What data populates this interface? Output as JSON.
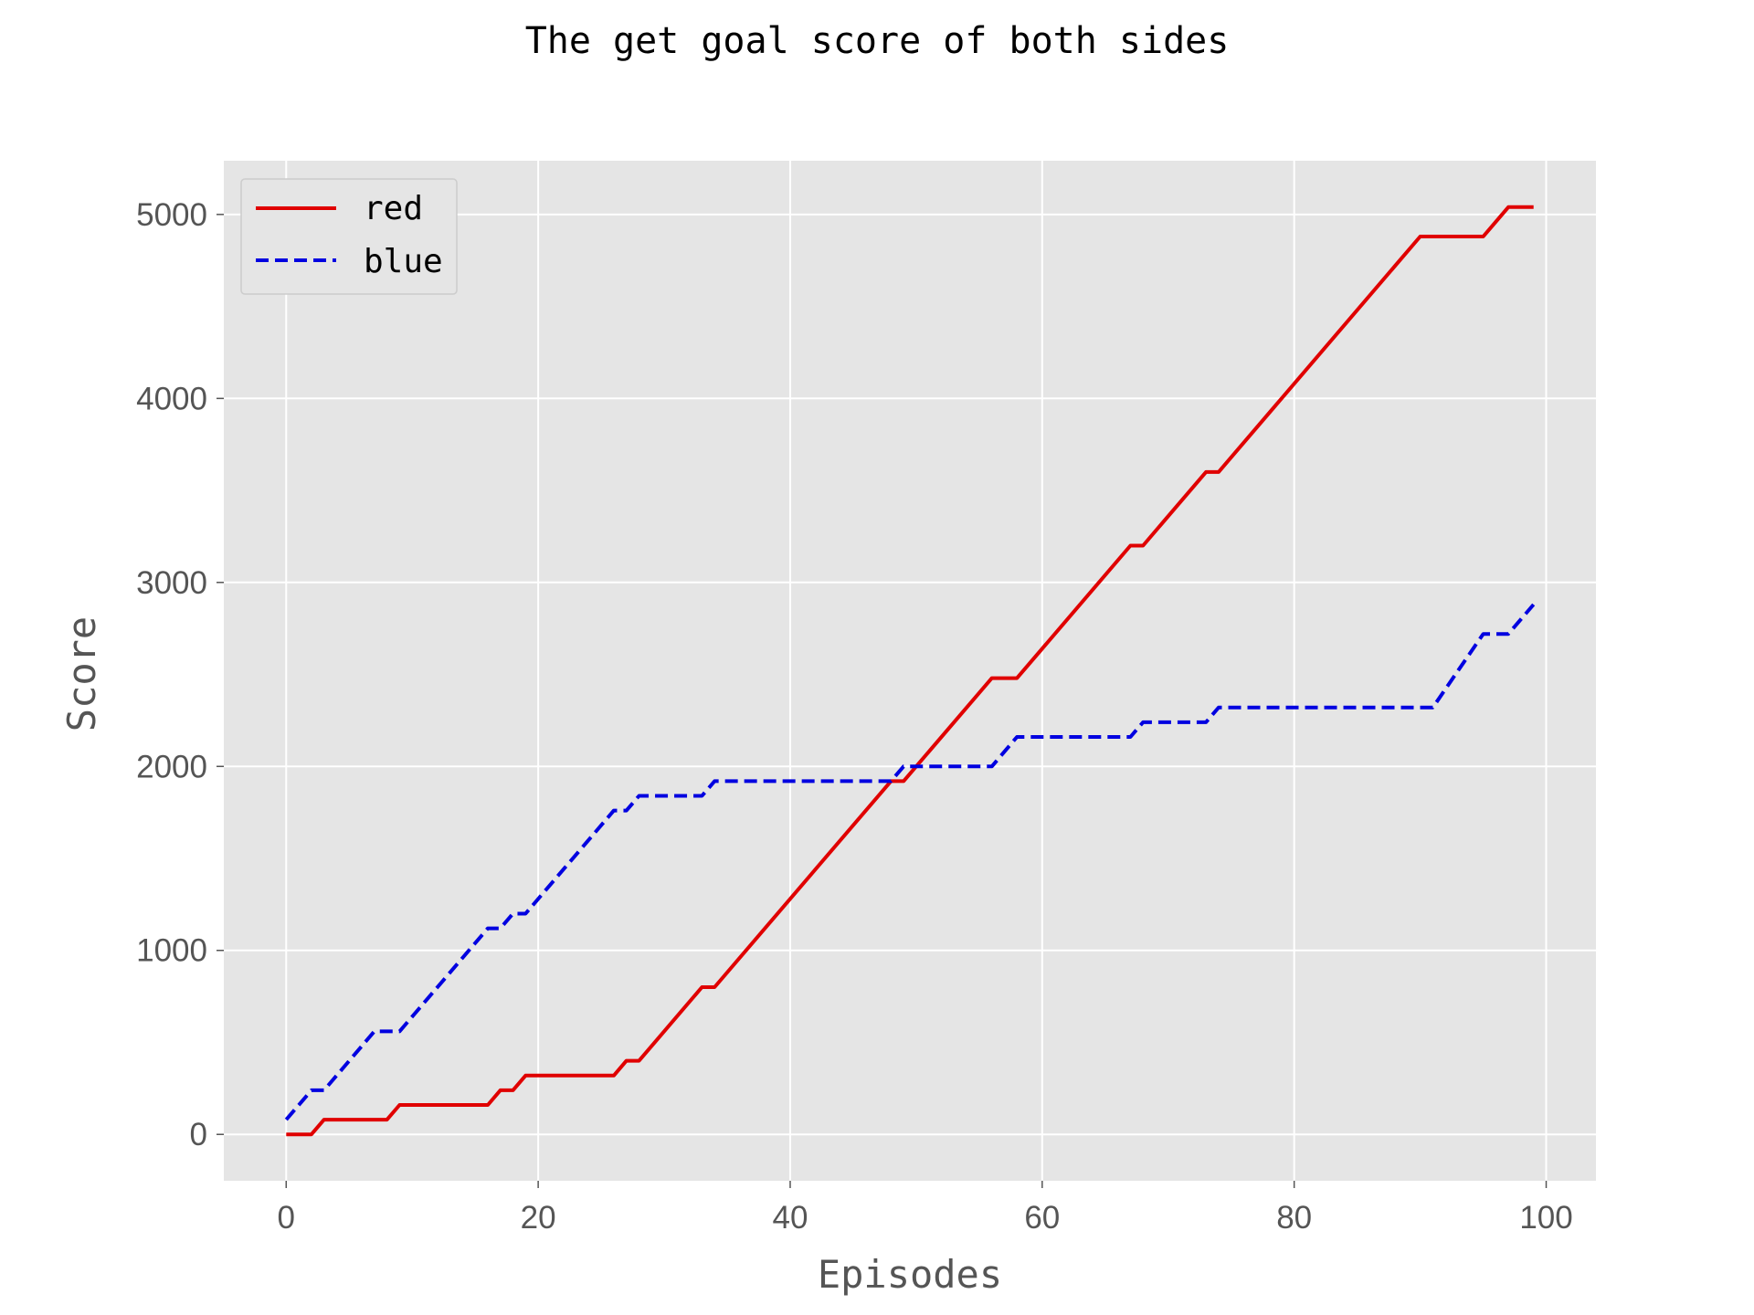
{
  "chart_data": {
    "type": "line",
    "title": "The get goal score of both sides",
    "xlabel": "Episodes",
    "ylabel": "Score",
    "xlim": [
      -4.95,
      103.95
    ],
    "ylim": [
      -252,
      5292
    ],
    "xticks": [
      0,
      20,
      40,
      60,
      80,
      100
    ],
    "yticks": [
      0,
      1000,
      2000,
      3000,
      4000,
      5000
    ],
    "grid": true,
    "legend_position": "upper-left",
    "background_color": "#e5e5e5",
    "grid_color": "#ffffff",
    "series": [
      {
        "name": "red",
        "color": "#e00000",
        "style": "solid",
        "x": [
          0,
          2,
          3,
          8,
          9,
          16,
          17,
          18,
          19,
          26,
          27,
          28,
          33,
          34,
          48,
          49,
          56,
          57,
          58,
          67,
          68,
          73,
          74,
          90,
          91,
          95,
          97,
          98,
          99
        ],
        "y": [
          0,
          0,
          80,
          80,
          160,
          160,
          240,
          240,
          320,
          320,
          400,
          400,
          800,
          800,
          1920,
          1920,
          2480,
          2480,
          2480,
          3200,
          3200,
          3600,
          3600,
          4880,
          4880,
          4880,
          5040,
          5040,
          5040
        ]
      },
      {
        "name": "blue",
        "color": "#0000e0",
        "style": "dashed",
        "x": [
          0,
          2,
          3,
          7,
          8,
          9,
          16,
          17,
          18,
          19,
          26,
          27,
          28,
          33,
          34,
          48,
          49,
          56,
          58,
          67,
          68,
          73,
          74,
          90,
          91,
          95,
          97,
          99
        ],
        "y": [
          80,
          240,
          240,
          560,
          560,
          560,
          1120,
          1120,
          1200,
          1200,
          1760,
          1760,
          1840,
          1840,
          1920,
          1920,
          2000,
          2000,
          2160,
          2160,
          2240,
          2240,
          2320,
          2320,
          2320,
          2720,
          2720,
          2880
        ]
      }
    ]
  }
}
